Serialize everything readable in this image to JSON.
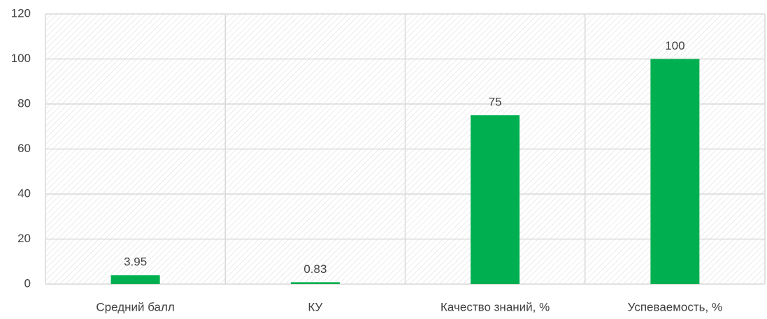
{
  "chart_data": {
    "type": "bar",
    "categories": [
      "Средний балл",
      "КУ",
      "Качество знаний, %",
      "Успеваемость, %"
    ],
    "values": [
      3.95,
      0.83,
      75,
      100
    ],
    "color": "#00b050",
    "ylim": [
      0,
      120
    ],
    "yticks": [
      0,
      20,
      40,
      60,
      80,
      100,
      120
    ],
    "grid": true
  }
}
